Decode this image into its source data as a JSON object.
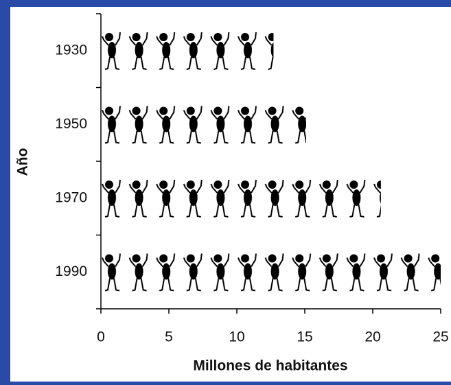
{
  "chart_data": {
    "type": "pictograph",
    "categories": [
      "1930",
      "1950",
      "1970",
      "1990"
    ],
    "values": [
      12.7,
      15.1,
      20.6,
      25
    ],
    "x_label": "Millones de habitantes",
    "y_label": "Año",
    "xlim": [
      0,
      25
    ],
    "xticks": [
      0,
      5,
      10,
      15,
      20,
      25
    ],
    "icon_unit": 2,
    "color": "#000000"
  }
}
